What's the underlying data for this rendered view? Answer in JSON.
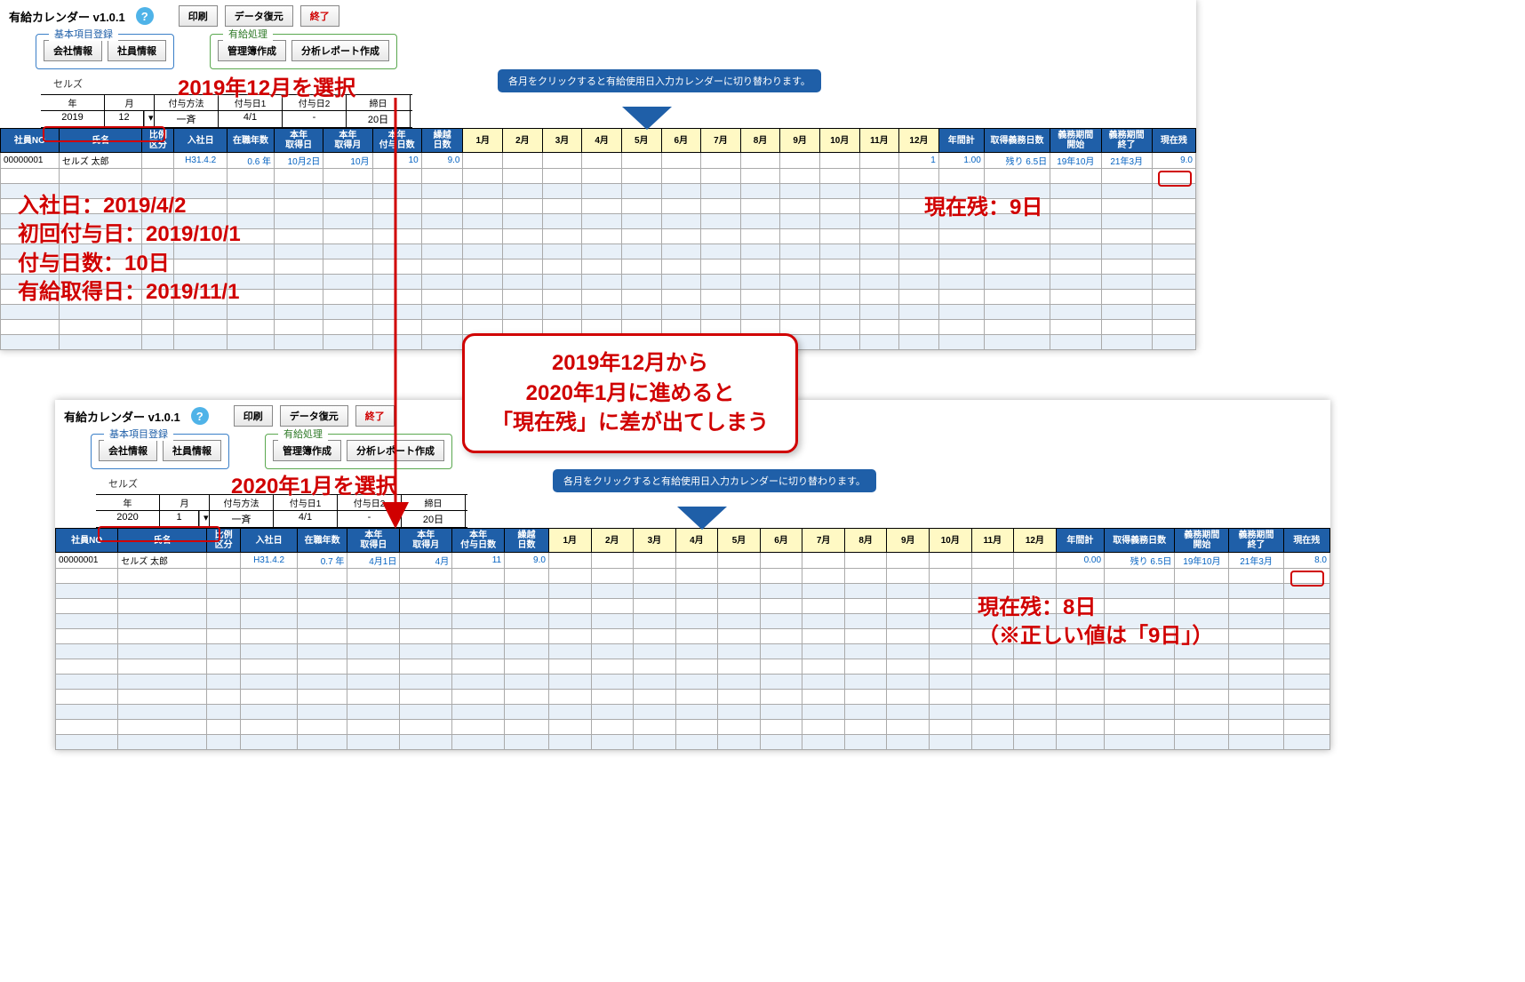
{
  "app_title": "有給カレンダー v1.0.1",
  "help_symbol": "?",
  "toolbar": {
    "print": "印刷",
    "restore": "データ復元",
    "exit": "終了"
  },
  "groups": {
    "basic": {
      "title": "基本項目登録",
      "company": "会社情報",
      "employee": "社員情報"
    },
    "proc": {
      "title": "有給処理",
      "ledger": "管理簿作成",
      "report": "分析レポート作成"
    }
  },
  "company_label": "セルズ",
  "date_hdr": {
    "year": "年",
    "month": "月",
    "method": "付与方法",
    "grant1": "付与日1",
    "grant2": "付与日2",
    "closing": "締日"
  },
  "panel1": {
    "date": {
      "year": "2019",
      "month": "12",
      "method": "一斉",
      "grant1": "4/1",
      "grant2": "-",
      "closing": "20日"
    },
    "row": {
      "emp_no": "00000001",
      "name": "セルズ 太郎",
      "ratio": "",
      "hire": "H31.4.2",
      "tenure": "0.6 年",
      "acq_date": "10月2日",
      "acq_month": "10月",
      "grant_days": "10",
      "carry": "9.0",
      "m12": "1",
      "annual": "1.00",
      "remain_days": "残り 6.5日",
      "obl_start": "19年10月",
      "obl_end": "21年3月",
      "balance": "9.0"
    }
  },
  "panel2": {
    "date": {
      "year": "2020",
      "month": "1",
      "method": "一斉",
      "grant1": "4/1",
      "grant2": "-",
      "closing": "20日"
    },
    "row": {
      "emp_no": "00000001",
      "name": "セルズ 太郎",
      "ratio": "",
      "hire": "H31.4.2",
      "tenure": "0.7 年",
      "acq_date": "4月1日",
      "acq_month": "4月",
      "grant_days": "11",
      "carry": "9.0",
      "annual": "0.00",
      "remain_days": "残り 6.5日",
      "obl_start": "19年10月",
      "obl_end": "21年3月",
      "balance": "8.0"
    }
  },
  "columns": {
    "emp_no": "社員NO",
    "name": "氏名",
    "ratio": "比例\n区分",
    "hire": "入社日",
    "tenure": "在職年数",
    "acq_date": "本年\n取得日",
    "acq_month": "本年\n取得月",
    "grant_days": "本年\n付与日数",
    "carry": "繰越\n日数",
    "months": [
      "1月",
      "2月",
      "3月",
      "4月",
      "5月",
      "6月",
      "7月",
      "8月",
      "9月",
      "10月",
      "11月",
      "12月"
    ],
    "annual": "年間計",
    "remain_days": "取得義務日数",
    "obl_start": "義務期間\n開始",
    "obl_end": "義務期間\n終了",
    "balance": "現在残"
  },
  "blue_callout": "各月をクリックすると有給使用日入力カレンダーに切り替わります。",
  "anno": {
    "select1": "2019年12月を選択",
    "select2": "2020年1月を選択",
    "info": "入社日：2019/4/2\n初回付与日：2019/10/1\n付与日数：10日\n有給取得日：2019/11/1",
    "bal1": "現在残：9日",
    "bal2": "現在残：8日\n（※正しい値は「9日」）",
    "center": "2019年12月から\n2020年1月に進めると\n「現在残」に差が出てしまう"
  },
  "colors": {
    "primary": "#1f5fa8",
    "accent_red": "#d00000",
    "month_bg": "#fff9c4"
  },
  "empty_rows": 12
}
